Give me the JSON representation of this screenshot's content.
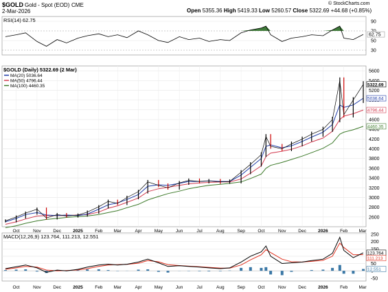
{
  "header": {
    "symbol": "$GOLD",
    "name": "Gold - Spot (EOD)",
    "exchange": "CME",
    "date": "2-Mar-2026",
    "open_label": "Open",
    "open": "5355.36",
    "high_label": "High",
    "high": "5419.33",
    "low_label": "Low",
    "low": "5260.57",
    "close_label": "Close",
    "close": "5322.69",
    "change": "+44.68 (+0.85%)",
    "watermark": "© StockCharts.com"
  },
  "colors": {
    "price": "#000000",
    "down": "#cc0000",
    "ma20": "#1f3ca8",
    "ma50": "#d23a4f",
    "ma100": "#3d7a2a",
    "rsi_fill": "#3f7a3a",
    "macd": "#000000",
    "signal": "#e0301e",
    "hist": "#3b78a6",
    "panel_bg": "#ffffff",
    "grid": "#e6e6e6"
  },
  "chart_data": [
    {
      "type": "line",
      "panel": "rsi",
      "legend": "RSI(14) 62.75",
      "y_ticks": [
        90,
        70,
        50,
        30
      ],
      "ylim": [
        20,
        100
      ],
      "right_label": "62.75",
      "x": [
        "2024-09-15",
        "2024-10-01",
        "2024-10-15",
        "2024-11-01",
        "2024-11-15",
        "2024-12-01",
        "2024-12-15",
        "2025-01-01",
        "2025-01-15",
        "2025-02-01",
        "2025-02-15",
        "2025-03-01",
        "2025-03-15",
        "2025-04-01",
        "2025-04-15",
        "2025-05-01",
        "2025-05-15",
        "2025-06-01",
        "2025-06-15",
        "2025-07-01",
        "2025-07-15",
        "2025-08-01",
        "2025-08-15",
        "2025-09-01",
        "2025-09-15",
        "2025-10-01",
        "2025-10-08",
        "2025-10-15",
        "2025-11-01",
        "2025-11-15",
        "2025-12-01",
        "2025-12-15",
        "2026-01-01",
        "2026-01-15",
        "2026-01-26",
        "2026-02-01",
        "2026-02-15",
        "2026-03-02"
      ],
      "values": [
        58,
        62,
        66,
        48,
        38,
        52,
        45,
        55,
        60,
        64,
        58,
        62,
        56,
        70,
        62,
        50,
        46,
        58,
        52,
        55,
        48,
        52,
        50,
        66,
        72,
        76,
        80,
        62,
        48,
        55,
        58,
        62,
        60,
        72,
        80,
        55,
        52,
        62.75
      ]
    },
    {
      "type": "line",
      "panel": "price",
      "title": "$GOLD (Daily) 5322.69 (2 Mar)",
      "legend": [
        {
          "name": "MA(20) 5036.64",
          "color": "#1f3ca8"
        },
        {
          "name": "MA(50) 4796.44",
          "color": "#d23a4f"
        },
        {
          "name": "MA(100) 4460.35",
          "color": "#3d7a2a"
        }
      ],
      "y_ticks": [
        2600,
        2800,
        3000,
        3200,
        3400,
        3600,
        3800,
        4000,
        4200,
        4400,
        4600,
        4800,
        5000,
        5200,
        5400,
        5600
      ],
      "ylim": [
        2400,
        5700
      ],
      "right_labels": [
        "5322.69",
        "5036.64",
        "4796.44",
        "4460.35"
      ],
      "x": [
        "2024-09-15",
        "2024-10-01",
        "2024-10-15",
        "2024-11-01",
        "2024-11-15",
        "2024-12-01",
        "2024-12-15",
        "2025-01-01",
        "2025-01-15",
        "2025-02-01",
        "2025-02-15",
        "2025-03-01",
        "2025-03-15",
        "2025-04-01",
        "2025-04-15",
        "2025-05-01",
        "2025-05-15",
        "2025-06-01",
        "2025-06-15",
        "2025-07-01",
        "2025-07-15",
        "2025-08-01",
        "2025-08-15",
        "2025-09-01",
        "2025-09-15",
        "2025-10-01",
        "2025-10-08",
        "2025-10-15",
        "2025-11-01",
        "2025-11-15",
        "2025-12-01",
        "2025-12-15",
        "2026-01-01",
        "2026-01-15",
        "2026-01-26",
        "2026-02-01",
        "2026-02-15",
        "2026-03-02"
      ],
      "series": [
        {
          "key": "price",
          "values": [
            2520,
            2600,
            2680,
            2760,
            2580,
            2650,
            2620,
            2640,
            2700,
            2810,
            2920,
            2880,
            3000,
            3120,
            3320,
            3250,
            3200,
            3300,
            3350,
            3330,
            3340,
            3320,
            3330,
            3520,
            3680,
            3880,
            4250,
            4050,
            4000,
            4100,
            4200,
            4300,
            4400,
            4600,
            5400,
            4700,
            5000,
            5322.69
          ]
        },
        {
          "key": "ma20",
          "values": [
            2500,
            2570,
            2650,
            2690,
            2640,
            2630,
            2640,
            2630,
            2660,
            2760,
            2850,
            2890,
            2960,
            3060,
            3230,
            3260,
            3250,
            3290,
            3330,
            3330,
            3340,
            3330,
            3330,
            3460,
            3620,
            3800,
            4050,
            4080,
            4020,
            4060,
            4150,
            4240,
            4340,
            4500,
            4900,
            4850,
            4900,
            5036.64
          ]
        },
        {
          "key": "ma50",
          "values": [
            2450,
            2500,
            2560,
            2620,
            2630,
            2630,
            2630,
            2640,
            2650,
            2700,
            2780,
            2830,
            2900,
            2990,
            3120,
            3180,
            3210,
            3250,
            3280,
            3300,
            3310,
            3320,
            3320,
            3380,
            3500,
            3650,
            3840,
            3910,
            3950,
            3990,
            4060,
            4140,
            4220,
            4360,
            4600,
            4670,
            4720,
            4796.44
          ]
        },
        {
          "key": "ma100",
          "values": [
            2380,
            2420,
            2470,
            2520,
            2550,
            2570,
            2590,
            2610,
            2620,
            2650,
            2690,
            2730,
            2790,
            2860,
            2950,
            3020,
            3080,
            3130,
            3180,
            3220,
            3250,
            3270,
            3290,
            3320,
            3390,
            3480,
            3600,
            3660,
            3720,
            3780,
            3850,
            3920,
            4010,
            4120,
            4300,
            4340,
            4390,
            4460.35
          ]
        }
      ]
    },
    {
      "type": "line",
      "panel": "macd",
      "legend": "MACD(12,26,9) 123.764, 111.213, 12.551",
      "y_ticks": [
        250,
        200,
        150,
        100,
        50,
        0,
        -50
      ],
      "ylim": [
        -70,
        260
      ],
      "right_labels": [
        "123.764",
        "111.213",
        "12.551"
      ],
      "x": [
        "2024-09-15",
        "2024-10-01",
        "2024-10-15",
        "2024-11-01",
        "2024-11-15",
        "2024-12-01",
        "2024-12-15",
        "2025-01-01",
        "2025-01-15",
        "2025-02-01",
        "2025-02-15",
        "2025-03-01",
        "2025-03-15",
        "2025-04-01",
        "2025-04-15",
        "2025-05-01",
        "2025-05-15",
        "2025-06-01",
        "2025-06-15",
        "2025-07-01",
        "2025-07-15",
        "2025-08-01",
        "2025-08-15",
        "2025-09-01",
        "2025-09-15",
        "2025-10-01",
        "2025-10-08",
        "2025-10-15",
        "2025-11-01",
        "2025-11-15",
        "2025-12-01",
        "2025-12-15",
        "2026-01-01",
        "2026-01-15",
        "2026-01-26",
        "2026-02-01",
        "2026-02-15",
        "2026-03-02"
      ],
      "series": [
        {
          "key": "macd",
          "values": [
            15,
            28,
            40,
            20,
            -10,
            5,
            0,
            10,
            25,
            40,
            45,
            40,
            45,
            60,
            80,
            55,
            30,
            35,
            30,
            25,
            20,
            15,
            20,
            60,
            100,
            130,
            170,
            100,
            50,
            55,
            60,
            70,
            80,
            120,
            230,
            140,
            90,
            123.764
          ]
        },
        {
          "key": "signal",
          "values": [
            10,
            20,
            30,
            25,
            5,
            0,
            2,
            6,
            15,
            30,
            40,
            42,
            44,
            52,
            70,
            62,
            42,
            36,
            32,
            28,
            24,
            18,
            18,
            40,
            75,
            110,
            145,
            125,
            80,
            62,
            60,
            65,
            72,
            100,
            190,
            160,
            110,
            111.213
          ]
        },
        {
          "key": "hist",
          "values": [
            5,
            8,
            10,
            -5,
            -15,
            5,
            -2,
            4,
            10,
            10,
            5,
            -2,
            1,
            8,
            10,
            -7,
            -12,
            -1,
            -2,
            -3,
            -4,
            -3,
            2,
            20,
            25,
            20,
            25,
            -25,
            -30,
            -7,
            0,
            5,
            8,
            20,
            40,
            -20,
            -20,
            12.551
          ]
        }
      ]
    }
  ],
  "x_axis": {
    "labels": [
      {
        "t": "2024-10-01",
        "text": "Oct"
      },
      {
        "t": "2024-11-01",
        "text": "Nov"
      },
      {
        "t": "2024-12-01",
        "text": "Dec"
      },
      {
        "t": "2025-01-01",
        "text": "2025"
      },
      {
        "t": "2025-02-01",
        "text": "Feb"
      },
      {
        "t": "2025-03-01",
        "text": "Mar"
      },
      {
        "t": "2025-04-01",
        "text": "Apr"
      },
      {
        "t": "2025-05-01",
        "text": "May"
      },
      {
        "t": "2025-06-01",
        "text": "Jun"
      },
      {
        "t": "2025-07-01",
        "text": "Jul"
      },
      {
        "t": "2025-08-01",
        "text": "Aug"
      },
      {
        "t": "2025-09-01",
        "text": "Sep"
      },
      {
        "t": "2025-10-01",
        "text": "Oct"
      },
      {
        "t": "2025-11-01",
        "text": "Nov"
      },
      {
        "t": "2025-12-01",
        "text": "Dec"
      },
      {
        "t": "2026-01-01",
        "text": "2026"
      },
      {
        "t": "2026-02-01",
        "text": "Feb"
      },
      {
        "t": "2026-03-01",
        "text": "Mar"
      }
    ],
    "range": [
      "2024-09-12",
      "2026-03-04"
    ]
  }
}
